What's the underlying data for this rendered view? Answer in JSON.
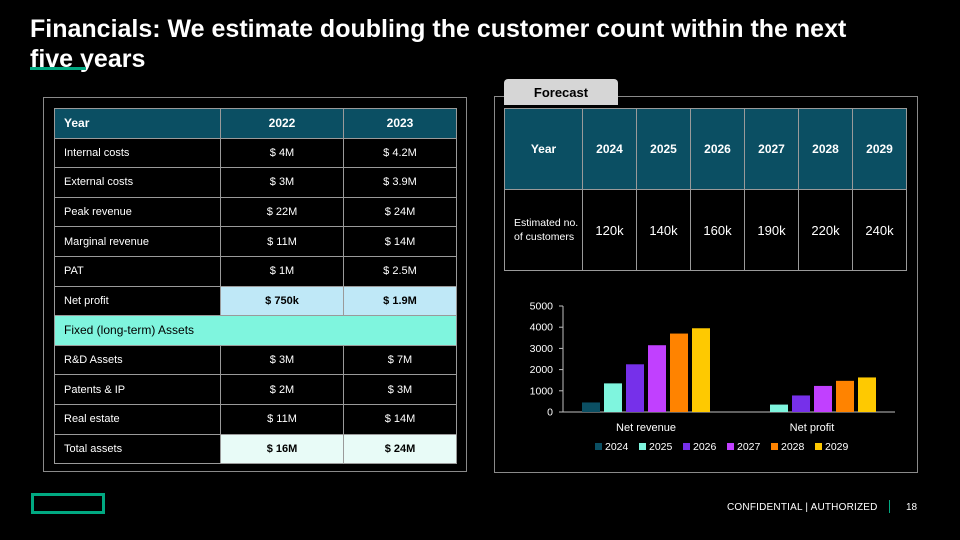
{
  "slide": {
    "title": "Financials: We estimate doubling the customer count within the next five years",
    "footer": "CONFIDENTIAL | AUTHORIZED",
    "page_number": "18",
    "accent_color": "#01a982"
  },
  "financials": {
    "headers": [
      "Year",
      "2022",
      "2023"
    ],
    "rows": [
      {
        "label": "Internal costs",
        "v2022": "$ 4M",
        "v2023": "$ 4.2M"
      },
      {
        "label": "External costs",
        "v2022": "$ 3M",
        "v2023": "$ 3.9M"
      },
      {
        "label": "Peak revenue",
        "v2022": "$ 22M",
        "v2023": "$ 24M"
      },
      {
        "label": "Marginal revenue",
        "v2022": "$ 11M",
        "v2023": "$ 14M"
      },
      {
        "label": "PAT",
        "v2022": "$ 1M",
        "v2023": "$ 2.5M"
      },
      {
        "label": "Net profit",
        "v2022": "$ 750k",
        "v2023": "$ 1.9M"
      }
    ],
    "section_label": "Fixed (long-term) Assets",
    "asset_rows": [
      {
        "label": "R&D Assets",
        "v2022": "$ 3M",
        "v2023": "$ 7M"
      },
      {
        "label": "Patents & IP",
        "v2022": "$ 2M",
        "v2023": "$ 3M"
      },
      {
        "label": "Real estate",
        "v2022": "$ 11M",
        "v2023": "$ 14M"
      },
      {
        "label": "Total assets",
        "v2022": "$ 16M",
        "v2023": "$ 24M"
      }
    ]
  },
  "forecast": {
    "tab_label": "Forecast",
    "headers": [
      "Year",
      "2024",
      "2025",
      "2026",
      "2027",
      "2028",
      "2029"
    ],
    "row_label": "Estimated no. of customers",
    "values": [
      "120k",
      "140k",
      "160k",
      "190k",
      "220k",
      "240k"
    ]
  },
  "chart_data": {
    "type": "bar",
    "categories": [
      "Net revenue",
      "Net profit"
    ],
    "series": [
      {
        "name": "2024",
        "color": "#0b4f63",
        "values": [
          450,
          0
        ]
      },
      {
        "name": "2025",
        "color": "#7ff5de",
        "values": [
          1350,
          350
        ]
      },
      {
        "name": "2026",
        "color": "#7630ea",
        "values": [
          2250,
          780
        ]
      },
      {
        "name": "2027",
        "color": "#c140ff",
        "values": [
          3150,
          1230
        ]
      },
      {
        "name": "2028",
        "color": "#ff8300",
        "values": [
          3700,
          1470
        ]
      },
      {
        "name": "2029",
        "color": "#fec901",
        "values": [
          3950,
          1630
        ]
      }
    ],
    "ylim": [
      0,
      5000
    ],
    "yticks": [
      0,
      1000,
      2000,
      3000,
      4000,
      5000
    ],
    "legend": "bottom",
    "grid": false
  }
}
